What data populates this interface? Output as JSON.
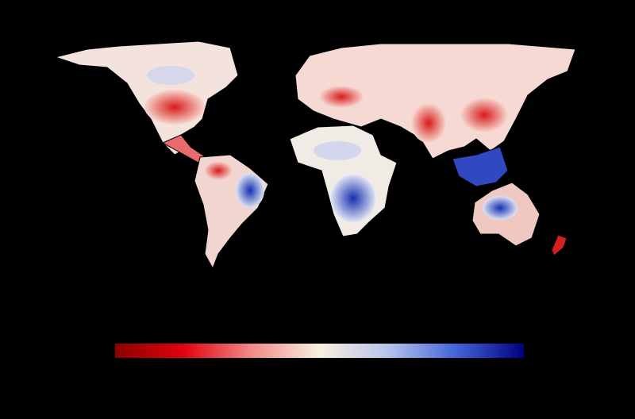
{
  "colorbar": {
    "colors": [
      "#8b0000",
      "#e3000f",
      "#f08a86",
      "#f8f0e0",
      "#b7c4ea",
      "#4265da",
      "#00007f"
    ]
  }
}
